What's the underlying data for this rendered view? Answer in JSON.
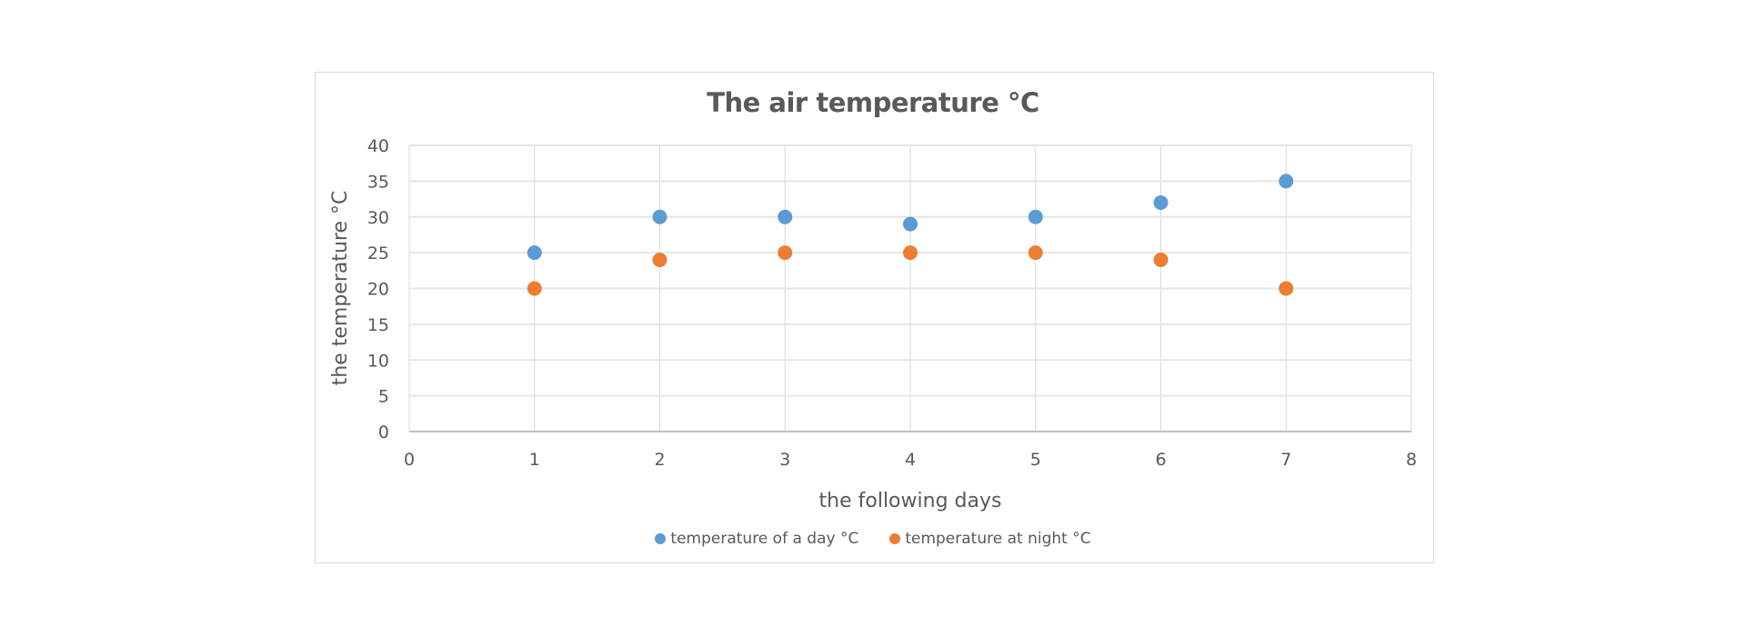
{
  "chart_data": {
    "type": "scatter",
    "title": "The air temperature °C",
    "xlabel": "the following days",
    "ylabel": "the temperature °C",
    "xlim": [
      0,
      8
    ],
    "ylim": [
      0,
      40
    ],
    "x_ticks": [
      "0",
      "1",
      "2",
      "3",
      "4",
      "5",
      "6",
      "7",
      "8"
    ],
    "y_ticks": [
      "0",
      "5",
      "10",
      "15",
      "20",
      "25",
      "30",
      "35",
      "40"
    ],
    "grid": true,
    "legend_position": "bottom",
    "x": [
      1,
      2,
      3,
      4,
      5,
      6,
      7
    ],
    "series": [
      {
        "name": "temperature of a day  °C",
        "color": "#5B9BD5",
        "values": [
          25,
          30,
          30,
          29,
          30,
          32,
          35
        ]
      },
      {
        "name": "temperature at night °C",
        "color": "#ED7D31",
        "values": [
          20,
          24,
          25,
          25,
          25,
          24,
          20
        ]
      }
    ]
  },
  "legend": {
    "items": [
      {
        "label": "temperature of a day  °C",
        "color": "#5B9BD5"
      },
      {
        "label": "temperature at night °C",
        "color": "#ED7D31"
      }
    ]
  }
}
